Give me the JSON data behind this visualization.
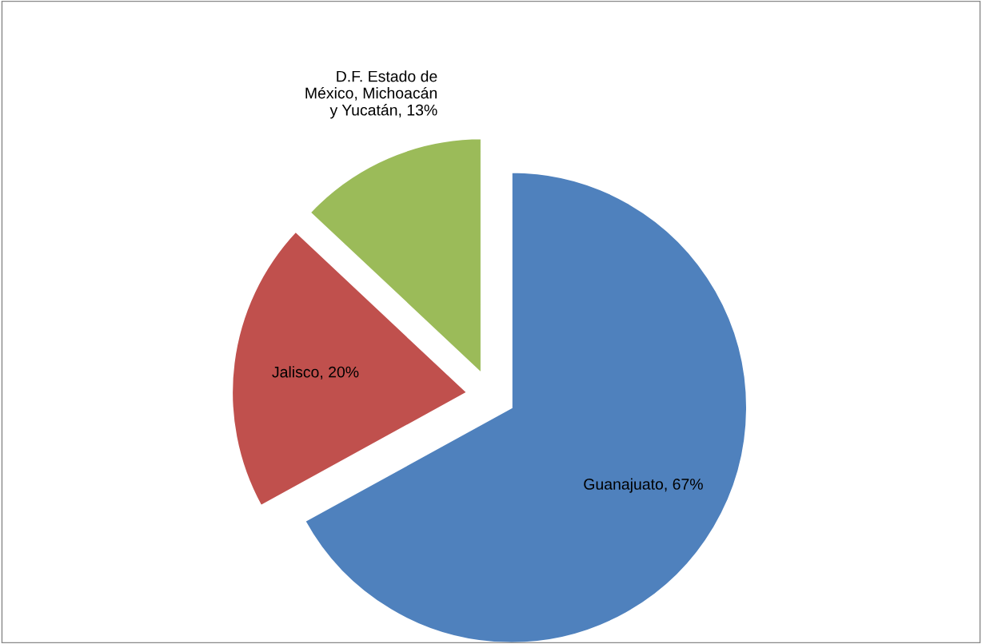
{
  "chart_data": {
    "type": "pie",
    "categories": [
      "Guanajuato",
      "Jalisco",
      "D.F. Estado de\nMéxico, Michoacán\ny Yucatán"
    ],
    "values": [
      67,
      20,
      13
    ],
    "value_labels": [
      "67%",
      "20%",
      "13%"
    ],
    "colors": [
      "#4f81bd",
      "#c0504d",
      "#9bbb59"
    ],
    "legend": false
  }
}
